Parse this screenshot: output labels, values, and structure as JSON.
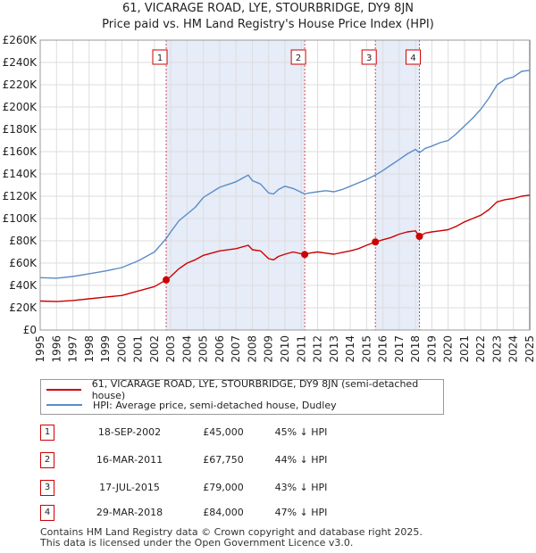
{
  "chart_data": {
    "type": "line",
    "title": "61, VICARAGE ROAD, LYE, STOURBRIDGE, DY9 8JN",
    "subtitle": "Price paid vs. HM Land Registry's House Price Index (HPI)",
    "xlabel": "",
    "ylabel": "",
    "xlim": [
      1995,
      2025
    ],
    "ylim": [
      0,
      260000
    ],
    "y_ticks": [
      0,
      20000,
      40000,
      60000,
      80000,
      100000,
      120000,
      140000,
      160000,
      180000,
      200000,
      220000,
      240000,
      260000
    ],
    "y_tick_labels": [
      "£0",
      "£20K",
      "£40K",
      "£60K",
      "£80K",
      "£100K",
      "£120K",
      "£140K",
      "£160K",
      "£180K",
      "£200K",
      "£220K",
      "£240K",
      "£260K"
    ],
    "x_ticks": [
      1995,
      1996,
      1997,
      1998,
      1999,
      2000,
      2001,
      2002,
      2003,
      2004,
      2005,
      2006,
      2007,
      2008,
      2009,
      2010,
      2011,
      2012,
      2013,
      2014,
      2015,
      2016,
      2017,
      2018,
      2019,
      2020,
      2021,
      2022,
      2023,
      2024,
      2025
    ],
    "x_tick_labels": [
      "1995",
      "1996",
      "1997",
      "1998",
      "1999",
      "2000",
      "2001",
      "2002",
      "2003",
      "2004",
      "2005",
      "2006",
      "2007",
      "2008",
      "2009",
      "2010",
      "2011",
      "2012",
      "2013",
      "2014",
      "2015",
      "2016",
      "2017",
      "2018",
      "2019",
      "2020",
      "2021",
      "2022",
      "2023",
      "2024",
      "2025"
    ],
    "grid": true,
    "series": [
      {
        "name": "61, VICARAGE ROAD, LYE, STOURBRIDGE, DY9 8JN (semi-detached house)",
        "color": "#cc0000",
        "x": [
          1995.0,
          1996.0,
          1997.0,
          1998.0,
          1999.0,
          2000.0,
          2001.0,
          2002.0,
          2002.72,
          2003.0,
          2003.5,
          2004.0,
          2004.5,
          2005.0,
          2006.0,
          2007.0,
          2007.75,
          2008.0,
          2008.5,
          2009.0,
          2009.3,
          2009.6,
          2010.0,
          2010.5,
          2011.21,
          2011.5,
          2012.0,
          2012.5,
          2013.0,
          2013.5,
          2014.0,
          2014.5,
          2015.0,
          2015.54,
          2016.0,
          2016.5,
          2017.0,
          2017.5,
          2018.0,
          2018.24,
          2018.6,
          2019.0,
          2019.5,
          2020.0,
          2020.5,
          2021.0,
          2021.5,
          2022.0,
          2022.5,
          2023.0,
          2023.5,
          2024.0,
          2024.5,
          2025.0
        ],
        "y": [
          26000,
          25500,
          26500,
          28000,
          29500,
          31000,
          35000,
          39000,
          45000,
          48000,
          55000,
          60000,
          63000,
          67000,
          71000,
          73000,
          76000,
          72000,
          71000,
          64000,
          63000,
          66000,
          68000,
          70000,
          67750,
          69000,
          70000,
          69000,
          68000,
          69500,
          71000,
          73000,
          76000,
          79000,
          81000,
          83000,
          86000,
          88000,
          89000,
          84000,
          87000,
          88000,
          89000,
          90000,
          93000,
          97000,
          100000,
          103000,
          108000,
          115000,
          117000,
          118000,
          120000,
          121000
        ]
      },
      {
        "name": "HPI: Average price, semi-detached house, Dudley",
        "color": "#5b8cc6",
        "x": [
          1995.0,
          1996.0,
          1997.0,
          1998.0,
          1999.0,
          2000.0,
          2001.0,
          2002.0,
          2002.72,
          2003.0,
          2003.5,
          2004.0,
          2004.5,
          2005.0,
          2006.0,
          2007.0,
          2007.75,
          2008.0,
          2008.5,
          2009.0,
          2009.3,
          2009.6,
          2010.0,
          2010.5,
          2011.21,
          2011.5,
          2012.0,
          2012.5,
          2013.0,
          2013.5,
          2014.0,
          2014.5,
          2015.0,
          2015.54,
          2016.0,
          2016.5,
          2017.0,
          2017.5,
          2018.0,
          2018.24,
          2018.6,
          2019.0,
          2019.5,
          2020.0,
          2020.5,
          2021.0,
          2021.5,
          2022.0,
          2022.5,
          2023.0,
          2023.5,
          2024.0,
          2024.5,
          2025.0
        ],
        "y": [
          47000,
          46500,
          48000,
          50500,
          53000,
          56000,
          62000,
          70000,
          82000,
          88000,
          98000,
          104000,
          110000,
          119000,
          128000,
          133000,
          139000,
          134000,
          131000,
          123000,
          122000,
          126000,
          129000,
          127000,
          122000,
          123000,
          124000,
          125000,
          124000,
          126000,
          129000,
          132000,
          135000,
          139000,
          143000,
          148000,
          153000,
          158000,
          162000,
          159000,
          163000,
          165000,
          168000,
          170000,
          176000,
          183000,
          190000,
          198000,
          208000,
          220000,
          225000,
          227000,
          232000,
          233000
        ]
      }
    ],
    "shaded_ranges": [
      {
        "from": 2002.72,
        "to": 2011.21
      },
      {
        "from": 2015.54,
        "to": 2018.24
      }
    ],
    "markers": [
      {
        "label": "1",
        "x": 2002.72,
        "y": 45000
      },
      {
        "label": "2",
        "x": 2011.21,
        "y": 67750
      },
      {
        "label": "3",
        "x": 2015.54,
        "y": 79000
      },
      {
        "label": "4",
        "x": 2018.24,
        "y": 84000
      }
    ]
  },
  "legend": {
    "property_label": "61, VICARAGE ROAD, LYE, STOURBRIDGE, DY9 8JN (semi-detached house)",
    "hpi_label": "HPI: Average price, semi-detached house, Dudley",
    "property_color": "#cc0000",
    "hpi_color": "#5b8cc6"
  },
  "transactions": [
    {
      "num": "1",
      "date": "18-SEP-2002",
      "price": "£45,000",
      "hpi": "45% ↓ HPI"
    },
    {
      "num": "2",
      "date": "16-MAR-2011",
      "price": "£67,750",
      "hpi": "44% ↓ HPI"
    },
    {
      "num": "3",
      "date": "17-JUL-2015",
      "price": "£79,000",
      "hpi": "43% ↓ HPI"
    },
    {
      "num": "4",
      "date": "29-MAR-2018",
      "price": "£84,000",
      "hpi": "47% ↓ HPI"
    }
  ],
  "footer": {
    "line1": "Contains HM Land Registry data © Crown copyright and database right 2025.",
    "line2": "This data is licensed under the Open Government Licence v3.0."
  },
  "colors": {
    "shade": "#e6ecf8",
    "grid": "#dddddd",
    "marker_box_border": "#cc0000"
  }
}
